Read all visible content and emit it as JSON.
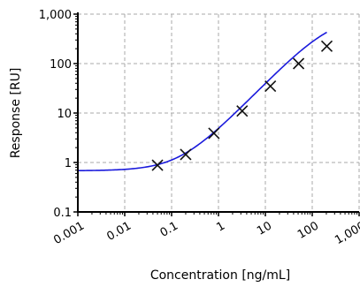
{
  "chart_data": {
    "type": "scatter",
    "xlabel": "Concentration [ng/mL]",
    "ylabel": "Response [RU]",
    "x_scale": "log",
    "y_scale": "log",
    "xlim": [
      0.001,
      1000
    ],
    "ylim": [
      0.1,
      1000
    ],
    "x_ticks": [
      {
        "value": 0.001,
        "label": "0.001"
      },
      {
        "value": 0.01,
        "label": "0.01"
      },
      {
        "value": 0.1,
        "label": "0.1"
      },
      {
        "value": 1,
        "label": "1"
      },
      {
        "value": 10,
        "label": "10"
      },
      {
        "value": 100,
        "label": "100"
      },
      {
        "value": 1000,
        "label": "1,000"
      }
    ],
    "y_ticks": [
      {
        "value": 0.1,
        "label": "0.1"
      },
      {
        "value": 1,
        "label": "1"
      },
      {
        "value": 10,
        "label": "10"
      },
      {
        "value": 100,
        "label": "100"
      },
      {
        "value": 1000,
        "label": "1,000"
      }
    ],
    "grid": true,
    "series": [
      {
        "marker": "x",
        "color": "#111111",
        "points": [
          {
            "x": 0.05,
            "y": 0.88
          },
          {
            "x": 0.2,
            "y": 1.45
          },
          {
            "x": 0.8,
            "y": 3.9
          },
          {
            "x": 3.2,
            "y": 11
          },
          {
            "x": 12.8,
            "y": 35
          },
          {
            "x": 51.2,
            "y": 100
          },
          {
            "x": 204.8,
            "y": 225
          }
        ]
      }
    ],
    "fit_curve": {
      "color": "#1a1adc",
      "model": "4PL",
      "bottom": 0.68,
      "top": 950,
      "ec50": 250,
      "hill": 0.98
    }
  }
}
